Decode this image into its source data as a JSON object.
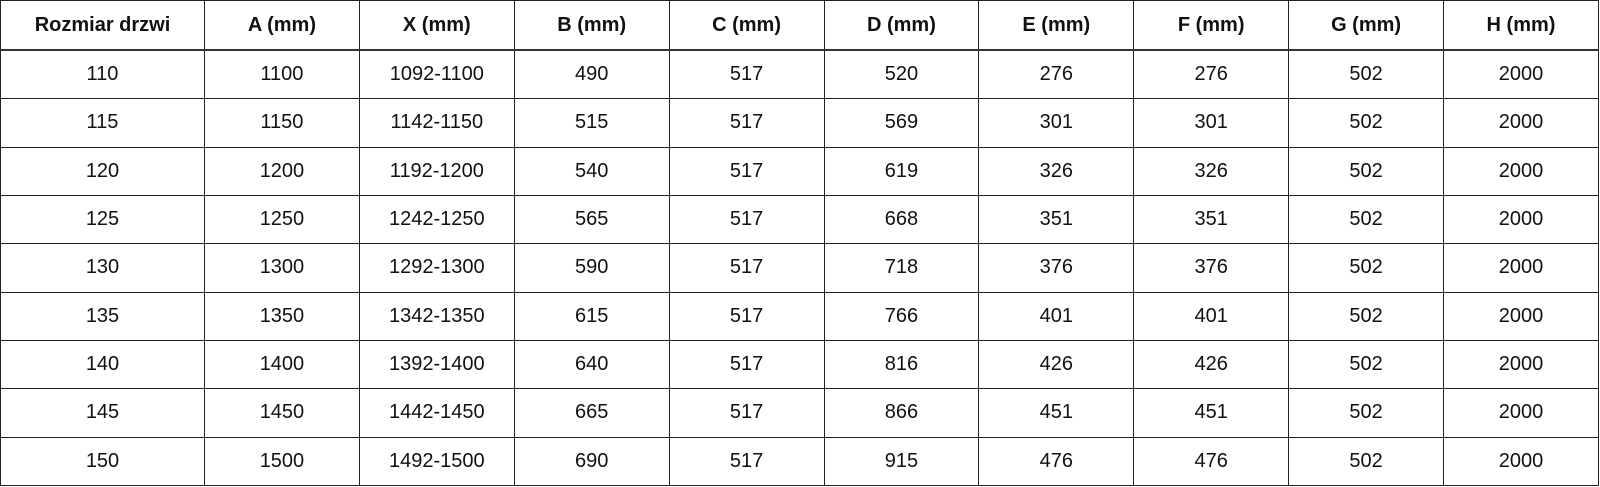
{
  "table": {
    "headers": [
      "Rozmiar drzwi",
      "A (mm)",
      "X (mm)",
      "B (mm)",
      "C (mm)",
      "D (mm)",
      "E (mm)",
      "F (mm)",
      "G (mm)",
      "H (mm)"
    ],
    "rows": [
      [
        "110",
        "1100",
        "1092-1100",
        "490",
        "517",
        "520",
        "276",
        "276",
        "502",
        "2000"
      ],
      [
        "115",
        "1150",
        "1142-1150",
        "515",
        "517",
        "569",
        "301",
        "301",
        "502",
        "2000"
      ],
      [
        "120",
        "1200",
        "1192-1200",
        "540",
        "517",
        "619",
        "326",
        "326",
        "502",
        "2000"
      ],
      [
        "125",
        "1250",
        "1242-1250",
        "565",
        "517",
        "668",
        "351",
        "351",
        "502",
        "2000"
      ],
      [
        "130",
        "1300",
        "1292-1300",
        "590",
        "517",
        "718",
        "376",
        "376",
        "502",
        "2000"
      ],
      [
        "135",
        "1350",
        "1342-1350",
        "615",
        "517",
        "766",
        "401",
        "401",
        "502",
        "2000"
      ],
      [
        "140",
        "1400",
        "1392-1400",
        "640",
        "517",
        "816",
        "426",
        "426",
        "502",
        "2000"
      ],
      [
        "145",
        "1450",
        "1442-1450",
        "665",
        "517",
        "866",
        "451",
        "451",
        "502",
        "2000"
      ],
      [
        "150",
        "1500",
        "1492-1500",
        "690",
        "517",
        "915",
        "476",
        "476",
        "502",
        "2000"
      ]
    ]
  }
}
